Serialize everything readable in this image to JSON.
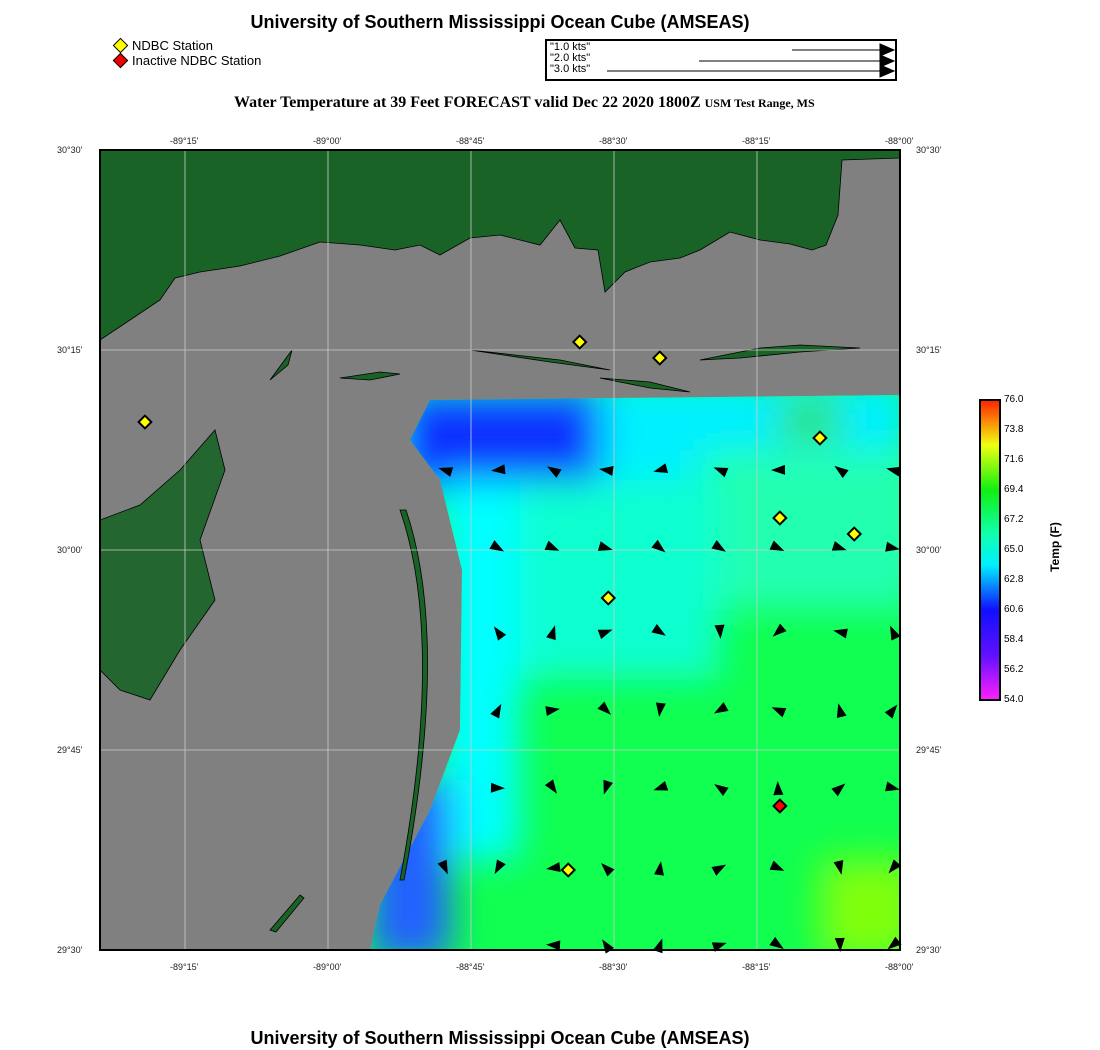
{
  "header": {
    "title": "University of Southern Mississippi Ocean Cube (AMSEAS)",
    "subtitle": "Water Temperature at 39 Feet FORECAST valid Dec 22 2020 1800Z",
    "region": "USM Test Range, MS"
  },
  "legend": {
    "active": "NDBC Station",
    "inactive": "Inactive NDBC Station",
    "active_color": "#ffff00",
    "inactive_color": "#ff0000"
  },
  "vector_scale": [
    "\"1.0 kts\"",
    "\"2.0 kts\"",
    "\"3.0 kts\""
  ],
  "axes": {
    "lon_ticks": [
      "-89°15'",
      "-89°00'",
      "-88°45'",
      "-88°30'",
      "-88°15'",
      "-88°00'"
    ],
    "lat_ticks": [
      "30°30'",
      "30°15'",
      "30°00'",
      "29°45'",
      "29°30'"
    ]
  },
  "colorbar": {
    "label": "Temp (F)",
    "ticks": [
      "76.0",
      "73.8",
      "71.6",
      "69.4",
      "67.2",
      "65.0",
      "62.8",
      "60.6",
      "58.4",
      "56.2",
      "54.0"
    ],
    "min": 54.0,
    "max": 76.0
  },
  "stations": [
    {
      "lon": -89.32,
      "lat": 30.33,
      "active": true
    },
    {
      "lon": -88.56,
      "lat": 30.38,
      "active": true
    },
    {
      "lon": -88.42,
      "lat": 30.37,
      "active": true
    },
    {
      "lon": -88.14,
      "lat": 30.32,
      "active": true
    },
    {
      "lon": -88.21,
      "lat": 30.27,
      "active": true
    },
    {
      "lon": -88.08,
      "lat": 30.26,
      "active": true
    },
    {
      "lon": -88.51,
      "lat": 30.22,
      "active": true
    },
    {
      "lon": -88.58,
      "lat": 30.05,
      "active": true
    },
    {
      "lon": -88.21,
      "lat": 30.09,
      "active": false
    }
  ],
  "footer": {
    "title": "University of Southern Mississippi Ocean Cube (AMSEAS)"
  }
}
